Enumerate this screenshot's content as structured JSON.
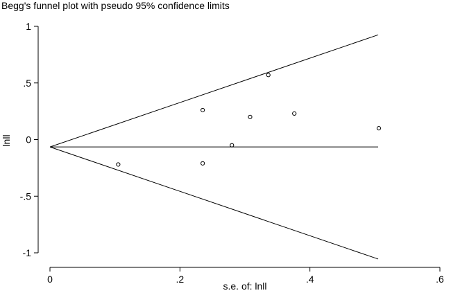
{
  "chart_data": {
    "type": "scatter",
    "title": "Begg's funnel plot with pseudo 95% confidence limits",
    "xlabel": "s.e. of: lnll",
    "ylabel": "lnll",
    "xlim": [
      0,
      0.6
    ],
    "ylim": [
      -1,
      1
    ],
    "x_ticks": [
      0,
      0.2,
      0.4,
      0.6
    ],
    "x_tick_labels": [
      "0",
      ".2",
      ".4",
      ".6"
    ],
    "y_ticks": [
      -1,
      -0.5,
      0,
      0.5,
      1
    ],
    "y_tick_labels": [
      "-1",
      "-.5",
      "0",
      ".5",
      "1"
    ],
    "grid": false,
    "pooled_effect": -0.065,
    "funnel_max_se": 0.505,
    "points": [
      {
        "x": 0.105,
        "y": -0.22
      },
      {
        "x": 0.235,
        "y": 0.26
      },
      {
        "x": 0.235,
        "y": -0.21
      },
      {
        "x": 0.28,
        "y": -0.05
      },
      {
        "x": 0.308,
        "y": 0.2
      },
      {
        "x": 0.336,
        "y": 0.57
      },
      {
        "x": 0.376,
        "y": 0.23
      },
      {
        "x": 0.506,
        "y": 0.1
      }
    ]
  }
}
